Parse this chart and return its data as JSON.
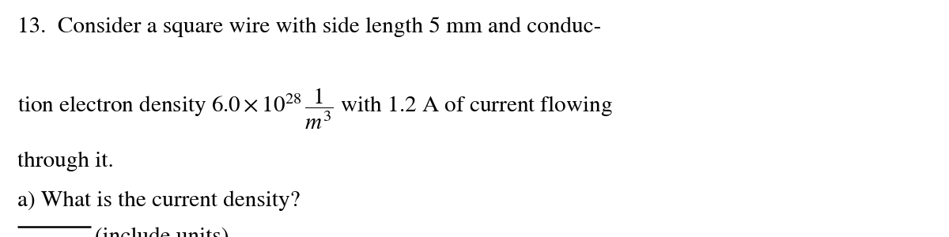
{
  "background_color": "#ffffff",
  "figsize": [
    12.0,
    3.0
  ],
  "dpi": 100,
  "line1": "13.  Consider a square wire with side length 5 mm and conduc-",
  "line2_mathtext": "tion electron density $6.0 \\times 10^{28}\\,\\dfrac{1}{m^3}$ with 1.2 A of current flowing",
  "line3": "through it.",
  "line4": "a) What is the current density?",
  "line5_text": "(include units)",
  "font_size_main": 21,
  "text_color": "#000000",
  "font_family": "STIXGeneral"
}
